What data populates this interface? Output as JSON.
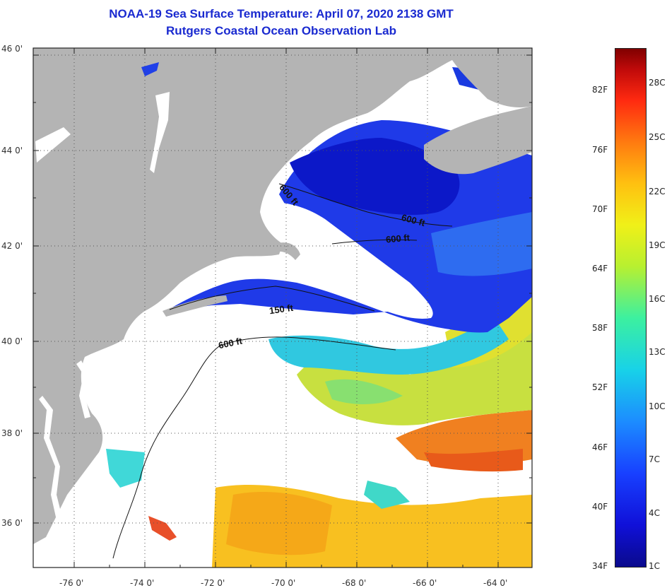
{
  "header": {
    "title": "NOAA-19 Sea Surface Temperature:  April 07, 2020 2138 GMT",
    "subtitle": "Rutgers Coastal Ocean Observation Lab"
  },
  "map": {
    "lat_ticks": [
      "46 0'",
      "44 0'",
      "42 0'",
      "40 0'",
      "38 0'",
      "36 0'"
    ],
    "lon_ticks": [
      "-76 0'",
      "-74 0'",
      "-72 0'",
      "-70 0'",
      "-68 0'",
      "-66 0'",
      "-64 0'"
    ],
    "contour_labels": [
      "600 ft",
      "600 ft",
      "600 ft",
      "150 ft",
      "600 ft"
    ],
    "colors": {
      "land": "#b4b4b4",
      "cloud": "#ffffff",
      "frame": "#222222"
    }
  },
  "colorbar": {
    "f_labels": [
      "82F",
      "76F",
      "70F",
      "64F",
      "58F",
      "52F",
      "46F",
      "40F",
      "34F"
    ],
    "c_labels": [
      "28C",
      "25C",
      "22C",
      "19C",
      "16C",
      "13C",
      "10C",
      "7C",
      "4C",
      "1C"
    ]
  }
}
